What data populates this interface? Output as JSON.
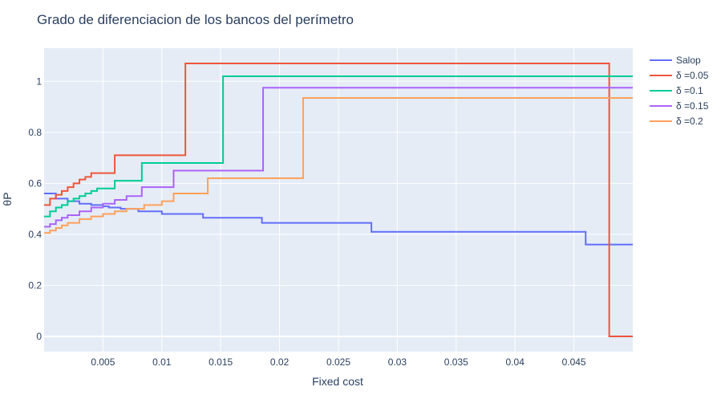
{
  "chart_data": {
    "type": "line",
    "title": "Grado de diferenciacion de los bancos del perímetro",
    "xlabel": "Fixed cost",
    "ylabel": "θP",
    "xlim": [
      0,
      0.05
    ],
    "ylim": [
      -0.06,
      1.13
    ],
    "x_ticks": [
      0.005,
      0.01,
      0.015,
      0.02,
      0.025,
      0.03,
      0.035,
      0.04,
      0.045
    ],
    "x_tick_labels": [
      "0.005",
      "0.01",
      "0.015",
      "0.02",
      "0.025",
      "0.03",
      "0.035",
      "0.04",
      "0.045"
    ],
    "y_ticks": [
      0,
      0.2,
      0.4,
      0.6,
      0.8,
      1
    ],
    "y_tick_labels": [
      "0",
      "0.2",
      "0.4",
      "0.6",
      "0.8",
      "1"
    ],
    "grid": true,
    "legend_position": "top-right",
    "background": "#e5ecf6",
    "series": [
      {
        "name": "Salop",
        "color": "#636efa",
        "x": [
          0,
          0.001,
          0.002,
          0.003,
          0.004,
          0.005,
          0.0055,
          0.0065,
          0.008,
          0.01,
          0.0135,
          0.0185,
          0.0278,
          0.046,
          0.05
        ],
        "y": [
          0.56,
          0.54,
          0.53,
          0.52,
          0.515,
          0.51,
          0.505,
          0.5,
          0.49,
          0.48,
          0.465,
          0.445,
          0.41,
          0.36,
          0.36
        ],
        "step": true
      },
      {
        "name": "δ =0.05",
        "color": "#ef553b",
        "x": [
          0,
          0.0005,
          0.001,
          0.0015,
          0.002,
          0.0025,
          0.003,
          0.0035,
          0.004,
          0.006,
          0.012,
          0.048,
          0.05
        ],
        "y": [
          0.515,
          0.54,
          0.555,
          0.57,
          0.585,
          0.6,
          0.615,
          0.625,
          0.64,
          0.71,
          1.07,
          0.0,
          0.0
        ],
        "step": true
      },
      {
        "name": "δ =0.1",
        "color": "#00cc96",
        "x": [
          0,
          0.0005,
          0.001,
          0.0015,
          0.002,
          0.0025,
          0.003,
          0.0035,
          0.004,
          0.0045,
          0.006,
          0.0083,
          0.0152,
          0.05
        ],
        "y": [
          0.47,
          0.49,
          0.505,
          0.515,
          0.53,
          0.54,
          0.55,
          0.56,
          0.57,
          0.58,
          0.61,
          0.68,
          1.02,
          1.02
        ],
        "step": true
      },
      {
        "name": "δ =0.15",
        "color": "#ab63fa",
        "x": [
          0,
          0.0005,
          0.001,
          0.0015,
          0.002,
          0.003,
          0.004,
          0.005,
          0.006,
          0.007,
          0.0083,
          0.011,
          0.0186,
          0.05
        ],
        "y": [
          0.43,
          0.44,
          0.455,
          0.465,
          0.475,
          0.49,
          0.505,
          0.52,
          0.535,
          0.55,
          0.585,
          0.65,
          0.975,
          0.975
        ],
        "step": true
      },
      {
        "name": "δ =0.2",
        "color": "#ffa15a",
        "x": [
          0,
          0.0005,
          0.001,
          0.0015,
          0.002,
          0.003,
          0.004,
          0.005,
          0.006,
          0.007,
          0.0085,
          0.01,
          0.011,
          0.0139,
          0.022,
          0.05
        ],
        "y": [
          0.405,
          0.415,
          0.425,
          0.435,
          0.445,
          0.46,
          0.47,
          0.48,
          0.49,
          0.5,
          0.515,
          0.53,
          0.56,
          0.62,
          0.935,
          0.935
        ],
        "step": true
      }
    ]
  }
}
